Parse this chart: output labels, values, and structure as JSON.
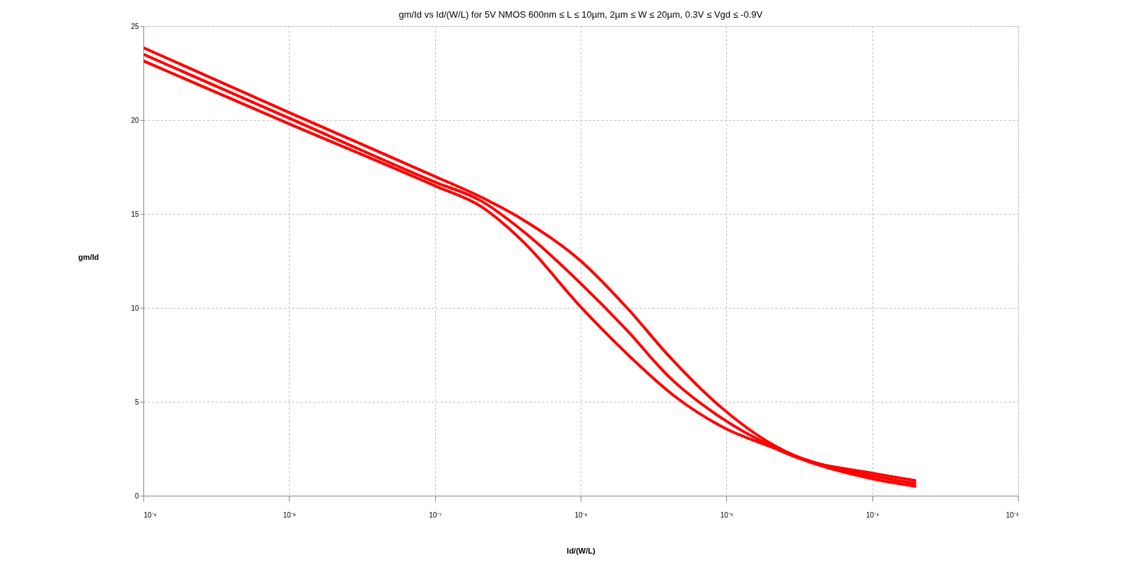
{
  "chart_data": {
    "type": "line",
    "title": "gm/Id vs Id/(W/L) for 5V NMOS",
    "subtitle": "600nm ≤ L ≤ 10µm, 2µm ≤ W ≤ 20µm, 0.3V ≤ Vgd ≤ -0.9V",
    "xlabel": "Id/(W/L)",
    "ylabel": "gm/Id",
    "log": "x",
    "grid": true,
    "legend": false,
    "marker": "none",
    "line_style": "solid",
    "xlim": [
      1e-09,
      0.001
    ],
    "ylim": [
      0,
      25
    ],
    "xticks": [
      {
        "value": 1e-09,
        "label": "10⁻⁹"
      },
      {
        "value": 1e-08,
        "label": "10⁻⁸"
      },
      {
        "value": 1e-07,
        "label": "10⁻⁷"
      },
      {
        "value": 1e-06,
        "label": "10⁻⁶"
      },
      {
        "value": 1e-05,
        "label": "10⁻⁵"
      },
      {
        "value": 0.0001,
        "label": "10⁻⁴"
      },
      {
        "value": 0.001,
        "label": "10⁻³"
      }
    ],
    "yticks": [
      0,
      5,
      10,
      15,
      20,
      25
    ],
    "series": [
      {
        "color": "#ff0000",
        "x": [
          1e-09,
          1e-08,
          1e-07,
          2.07e-07,
          4e-07,
          1e-06,
          2.08e-06,
          4.07e-06,
          8.6e-06,
          2.1e-05,
          3e-05,
          0.0001,
          0.0002
        ],
        "values": [
          23.85,
          20.4,
          17.0,
          15.9,
          14.7,
          12.5,
          10.0,
          7.4,
          4.9,
          2.7,
          2.1,
          1.2,
          0.8
        ]
      },
      {
        "color": "#ff0000",
        "x": [
          1e-09,
          1e-08,
          1e-07,
          2.07e-07,
          4e-07,
          1e-06,
          2.08e-06,
          4.07e-06,
          8.6e-06,
          2.1e-05,
          3e-05,
          0.0001,
          0.0002
        ],
        "values": [
          23.5,
          20.1,
          16.7,
          15.7,
          14.1,
          11.3,
          8.8,
          6.3,
          4.3,
          2.6,
          2.1,
          1.05,
          0.65
        ]
      },
      {
        "color": "#ff0000",
        "x": [
          1e-09,
          1e-08,
          1e-07,
          2.07e-07,
          4e-07,
          1e-06,
          2.08e-06,
          4.4e-06,
          1e-05,
          2.1e-05,
          3e-05,
          0.0001,
          0.0002
        ],
        "values": [
          23.15,
          19.8,
          16.5,
          15.4,
          13.55,
          10.05,
          7.55,
          5.3,
          3.55,
          2.55,
          2.05,
          0.9,
          0.5
        ]
      }
    ]
  }
}
